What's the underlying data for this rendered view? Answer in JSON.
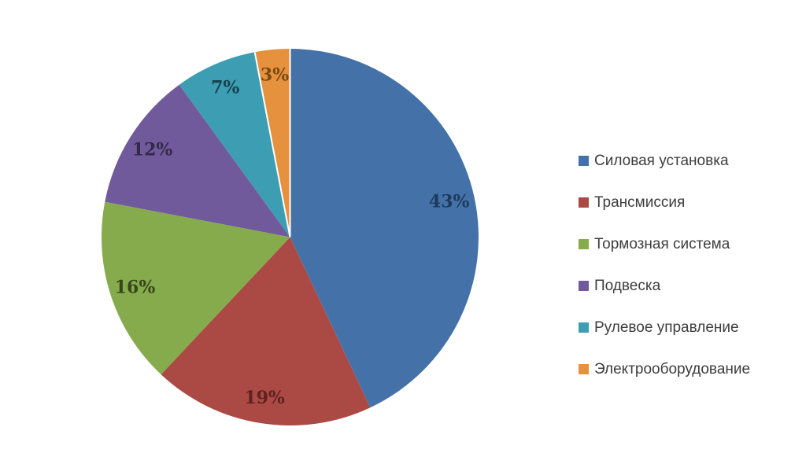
{
  "chart_data": {
    "type": "pie",
    "title": "",
    "legend_position": "right",
    "labels_shown": "percent-inside",
    "direction": "clockwise",
    "start_angle_deg": 0,
    "series": [
      {
        "name": "Силовая установка",
        "value": 43,
        "label": "43%",
        "color": "#4472a8",
        "label_color": "#1c3a5e"
      },
      {
        "name": "Трансмиссия",
        "value": 19,
        "label": "19%",
        "color": "#ab4a44",
        "label_color": "#5e2220"
      },
      {
        "name": "Тормозная система",
        "value": 16,
        "label": "16%",
        "color": "#86ab4c",
        "label_color": "#36461b"
      },
      {
        "name": "Подвеска",
        "value": 12,
        "label": "12%",
        "color": "#715a9c",
        "label_color": "#33294a"
      },
      {
        "name": "Рулевое управление",
        "value": 7,
        "label": "7%",
        "color": "#3d9db3",
        "label_color": "#17424e"
      },
      {
        "name": "Электрооборудование",
        "value": 3,
        "label": "3%",
        "color": "#e5913e",
        "label_color": "#7a4a10"
      }
    ],
    "separator_color": "#ffffff"
  }
}
